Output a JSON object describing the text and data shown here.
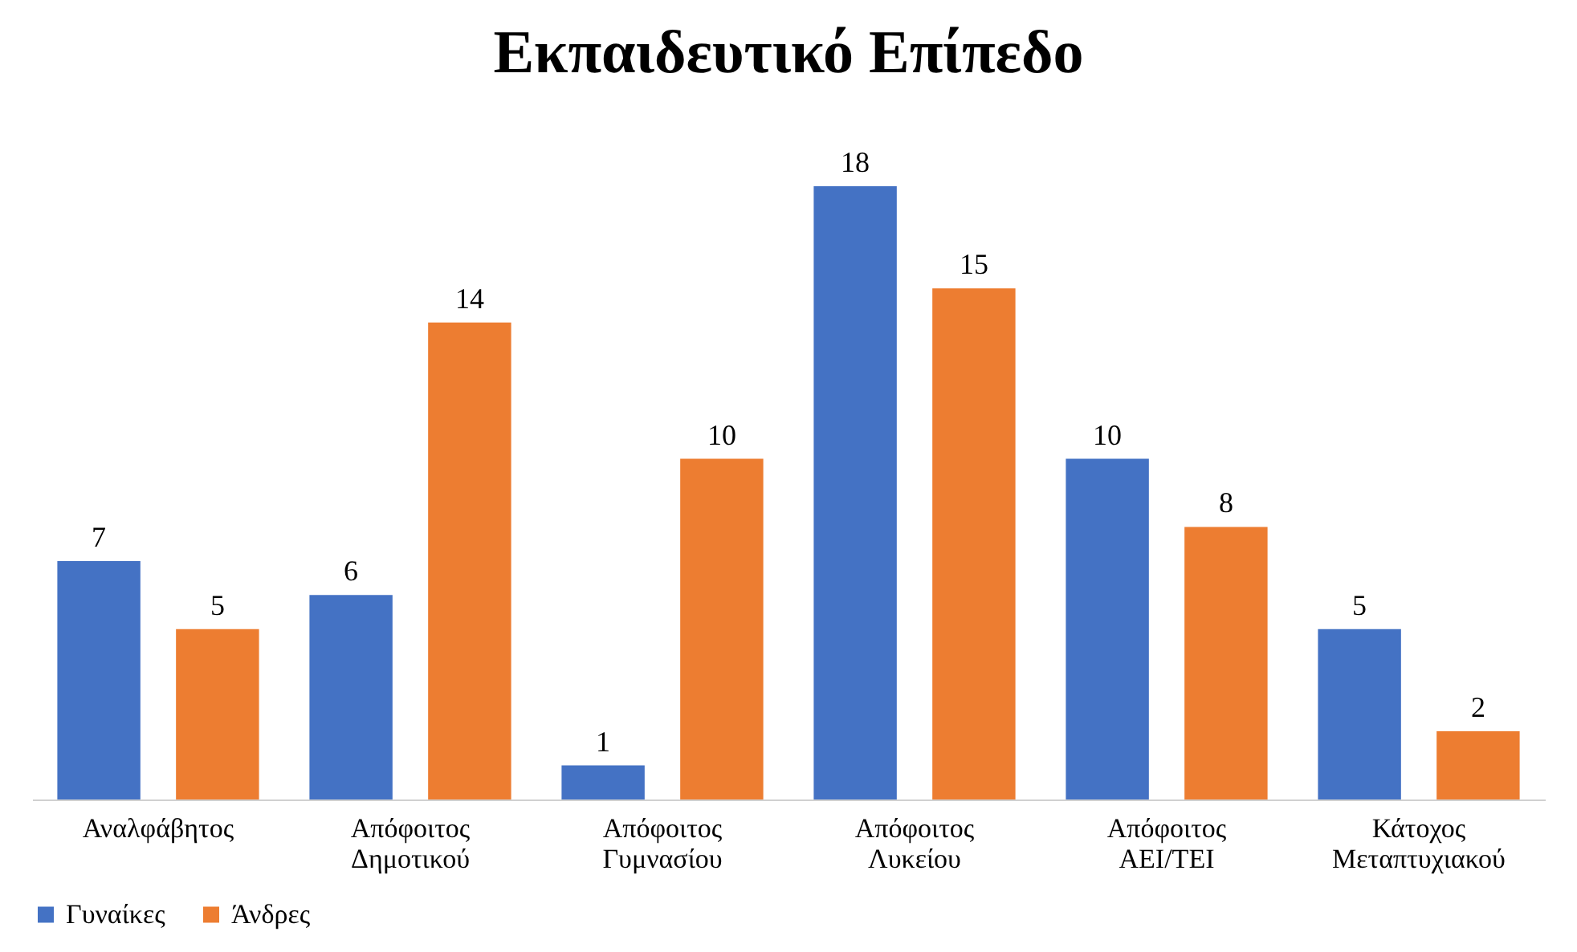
{
  "chart_data": {
    "type": "bar",
    "title": "Εκπαιδευτικό Επίπεδο",
    "categories": [
      "Αναλφάβητος",
      "Απόφοιτος Δημοτικού",
      "Απόφοιτος Γυμνασίου",
      "Απόφοιτος Λυκείου",
      "Απόφοιτος ΑΕΙ/ΤΕΙ",
      "Κάτοχος Μεταπτυχιακού"
    ],
    "series": [
      {
        "name": "Γυναίκες",
        "color": "#4472c4",
        "values": [
          7,
          6,
          1,
          18,
          10,
          5
        ]
      },
      {
        "name": "Άνδρες",
        "color": "#ed7d31",
        "values": [
          5,
          14,
          10,
          15,
          8,
          2
        ]
      }
    ],
    "data_labels": true,
    "legend": "bottom",
    "grid": false
  }
}
